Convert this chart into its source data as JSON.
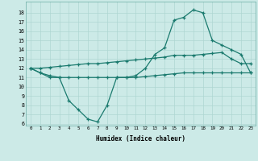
{
  "x": [
    0,
    1,
    2,
    3,
    4,
    5,
    6,
    7,
    8,
    9,
    10,
    11,
    12,
    13,
    14,
    15,
    16,
    17,
    18,
    19,
    20,
    21,
    22,
    23
  ],
  "curve1": [
    12.0,
    11.5,
    11.0,
    11.0,
    8.5,
    7.5,
    6.5,
    6.2,
    8.0,
    11.0,
    11.0,
    11.2,
    12.0,
    13.5,
    14.2,
    17.2,
    17.5,
    18.3,
    18.0,
    15.0,
    14.5,
    14.0,
    13.5,
    11.5
  ],
  "curve2": [
    12.0,
    11.5,
    11.2,
    11.0,
    11.0,
    11.0,
    11.0,
    11.0,
    11.0,
    11.0,
    11.0,
    11.0,
    11.1,
    11.2,
    11.3,
    11.4,
    11.5,
    11.5,
    11.5,
    11.5,
    11.5,
    11.5,
    11.5,
    11.5
  ],
  "curve3": [
    12.0,
    12.0,
    12.1,
    12.2,
    12.3,
    12.4,
    12.5,
    12.5,
    12.6,
    12.7,
    12.8,
    12.9,
    13.0,
    13.1,
    13.2,
    13.4,
    13.4,
    13.4,
    13.5,
    13.6,
    13.7,
    13.0,
    12.5,
    12.5
  ],
  "line_color": "#1a7a6e",
  "bg_color": "#cceae7",
  "grid_color": "#aed6d2",
  "xlabel": "Humidex (Indice chaleur)",
  "ylim": [
    6,
    19
  ],
  "yticks": [
    6,
    7,
    8,
    9,
    10,
    11,
    12,
    13,
    14,
    15,
    16,
    17,
    18
  ],
  "xlim": [
    -0.5,
    23.5
  ],
  "xticks": [
    0,
    1,
    2,
    3,
    4,
    5,
    6,
    7,
    8,
    9,
    10,
    11,
    12,
    13,
    14,
    15,
    16,
    17,
    18,
    19,
    20,
    21,
    22,
    23
  ]
}
